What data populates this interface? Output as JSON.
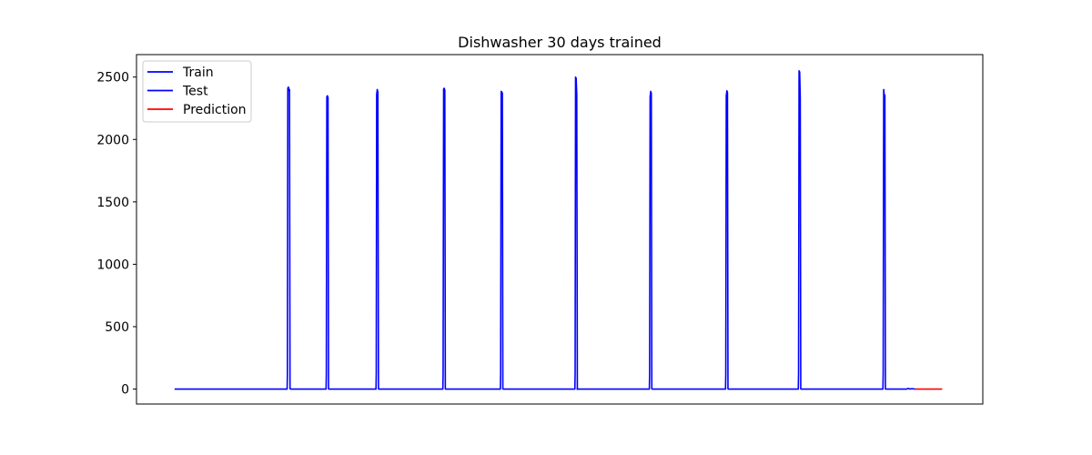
{
  "chart_data": {
    "type": "line",
    "title": "Dishwasher 30 days trained",
    "xlabel": "",
    "ylabel": "",
    "xlim": [
      0,
      1000
    ],
    "ylim": [
      -120,
      2680
    ],
    "yticks": [
      0,
      500,
      1000,
      1500,
      2000,
      2500
    ],
    "ytick_labels": [
      "0",
      "500",
      "1000",
      "1500",
      "2000",
      "2500"
    ],
    "show_xticks": false,
    "grid": false,
    "legend_position": "top-left",
    "series": [
      {
        "name": "Train",
        "color": "#0000ff",
        "x": [
          45,
          178,
          178.3,
          178.8,
          179.5,
          180.2,
          180.8,
          181.4,
          182,
          224,
          224.3,
          224.9,
          225.6,
          226.3,
          226.9,
          227.5,
          283,
          283.3,
          283.8,
          284.5,
          285.2,
          285.9,
          286.5,
          362,
          362.3,
          362.9,
          363.6,
          364.3,
          364.9,
          365.5,
          430,
          430.3,
          430.9,
          431.6,
          432.3,
          432.9,
          433.5,
          518,
          518.3,
          518.8,
          519.5,
          520.2,
          520.9,
          521.5,
          520
        ],
        "y": [
          0,
          0,
          120,
          2410,
          2420,
          2390,
          2400,
          2,
          0,
          0,
          120,
          2340,
          2350,
          2335,
          1,
          0,
          0,
          130,
          2360,
          2400,
          2380,
          1,
          0,
          0,
          120,
          2405,
          2410,
          2395,
          1,
          0,
          0,
          120,
          2385,
          2380,
          2370,
          1,
          0,
          0,
          130,
          2500,
          2490,
          2360,
          1,
          0,
          0
        ]
      },
      {
        "name": "Test",
        "color": "#0000ff",
        "x": [
          520,
          606,
          606.3,
          606.9,
          607.6,
          608.3,
          608.9,
          609.5,
          696,
          696.3,
          696.9,
          697.6,
          698.3,
          698.9,
          699.5,
          782,
          782.3,
          782.9,
          783.6,
          784.3,
          784.9,
          785.5,
          882,
          882.3,
          882.9,
          883.6,
          884.3,
          884.9,
          885.5,
          910,
          912,
          914,
          916,
          920
        ],
        "y": [
          0,
          0,
          120,
          2340,
          2385,
          2370,
          1,
          0,
          0,
          120,
          2350,
          2390,
          2375,
          1,
          0,
          0,
          130,
          2550,
          2540,
          2330,
          1,
          0,
          0,
          130,
          2400,
          2350,
          2355,
          1,
          0,
          0,
          5,
          0,
          3,
          0
        ]
      },
      {
        "name": "Prediction",
        "color": "#ff0000",
        "x": [
          920,
          952
        ],
        "y": [
          0,
          0
        ]
      }
    ]
  }
}
